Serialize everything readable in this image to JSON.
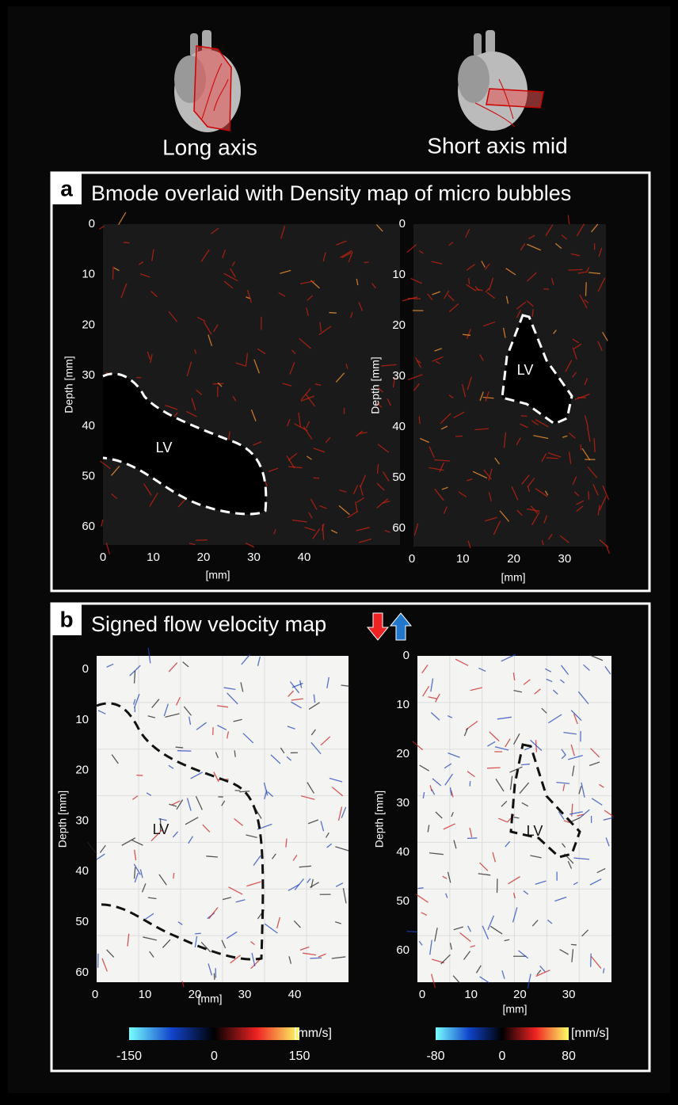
{
  "header": {
    "views": [
      "Long axis",
      "Short axis mid"
    ]
  },
  "panels": [
    {
      "label": "a",
      "title": "Bmode overlaid with Density map of micro bubbles",
      "plots": [
        {
          "xlabel": "[mm]",
          "ylabel": "Depth [mm]",
          "xticks": [
            0,
            10,
            20,
            30,
            40
          ],
          "yticks": [
            0,
            10,
            20,
            30,
            40,
            50,
            60
          ],
          "region": "LV"
        },
        {
          "xlabel": "[mm]",
          "ylabel": "Depth [mm]",
          "xticks": [
            0,
            10,
            20,
            30
          ],
          "yticks": [
            0,
            10,
            20,
            30,
            40,
            50,
            60
          ],
          "region": "LV"
        }
      ]
    },
    {
      "label": "b",
      "title": "Signed flow velocity map",
      "plots": [
        {
          "xlabel": "[mm]",
          "ylabel": "Depth [mm]",
          "xticks": [
            0,
            10,
            20,
            30,
            40
          ],
          "yticks": [
            0,
            10,
            20,
            30,
            40,
            50,
            60
          ],
          "region": "LV"
        },
        {
          "xlabel": "[mm]",
          "ylabel": "Depth [mm]",
          "xticks": [
            0,
            10,
            20,
            30
          ],
          "yticks": [
            0,
            10,
            20,
            30,
            40,
            50,
            60
          ],
          "region": "LV"
        }
      ],
      "colorbars": [
        {
          "ticks": [
            -150,
            0,
            150
          ],
          "unit": "[mm/s]"
        },
        {
          "ticks": [
            -80,
            0,
            80
          ],
          "unit": "[mm/s]"
        }
      ]
    }
  ]
}
